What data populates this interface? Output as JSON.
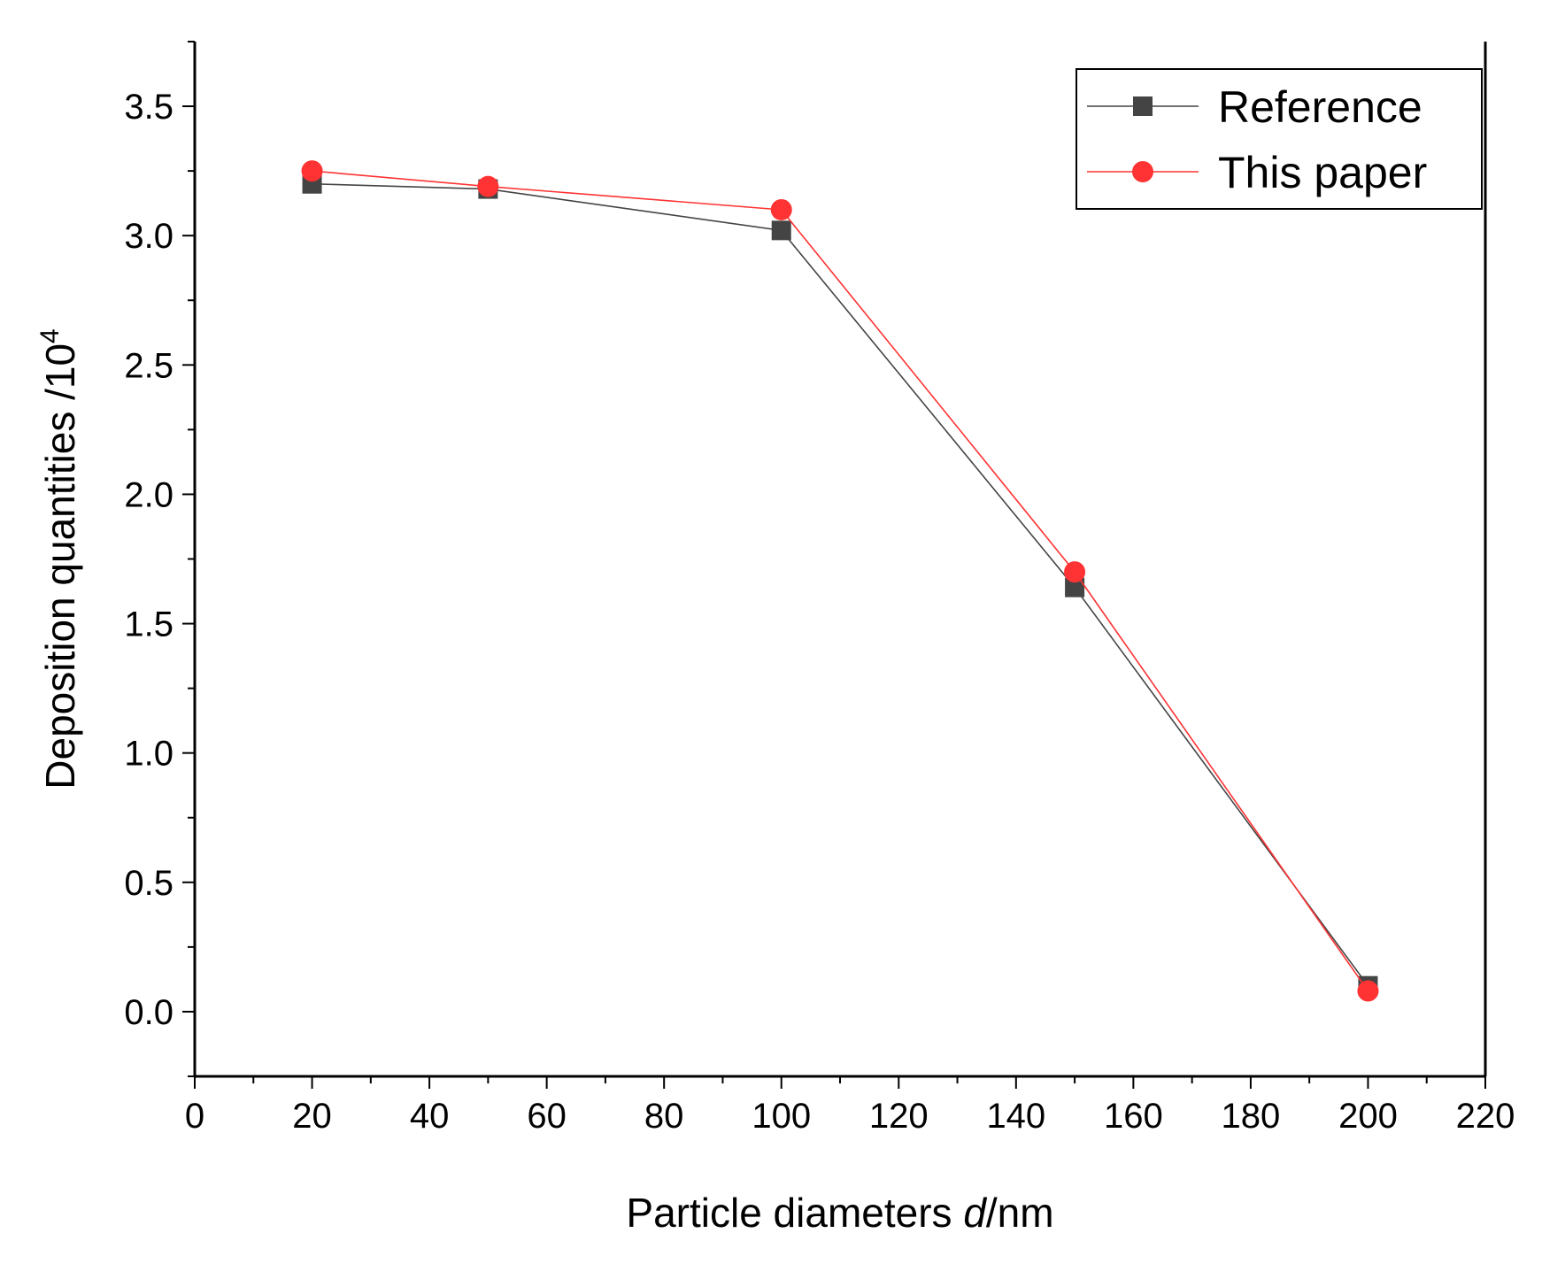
{
  "chart_data": {
    "type": "line",
    "title": "",
    "xlabel_main": "Particle diameters ",
    "xlabel_italic": "d",
    "xlabel_unit": "/nm",
    "ylabel_main": "Deposition quantities /10",
    "ylabel_sup": "4",
    "xlim": [
      0,
      220
    ],
    "ylim": [
      -0.25,
      3.75
    ],
    "xticks": [
      "0",
      "20",
      "40",
      "60",
      "80",
      "100",
      "120",
      "140",
      "160",
      "180",
      "200",
      "220"
    ],
    "yticks": [
      "0.0",
      "0.5",
      "1.0",
      "1.5",
      "2.0",
      "2.5",
      "3.0",
      "3.5"
    ],
    "grid": false,
    "legend_position": "top-right",
    "x": [
      20,
      50,
      100,
      150,
      200
    ],
    "series": [
      {
        "name": "Reference",
        "marker": "square",
        "color": "#444444",
        "values": [
          3.2,
          3.18,
          3.02,
          1.64,
          0.1
        ]
      },
      {
        "name": "This paper",
        "marker": "circle",
        "color": "#ff3333",
        "values": [
          3.25,
          3.19,
          3.1,
          1.7,
          0.08
        ]
      }
    ]
  }
}
